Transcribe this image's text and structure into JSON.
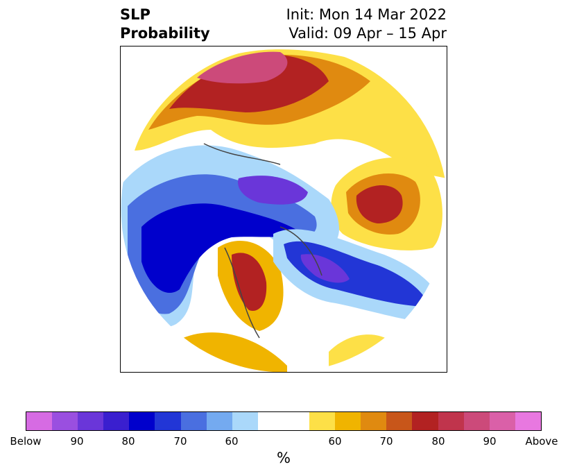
{
  "title": {
    "left_line1": "SLP",
    "left_line2": "Probability",
    "right_line1": "Init: Mon 14 Mar 2022",
    "right_line2": "Valid: 09 Apr – 15 Apr"
  },
  "colorbar": {
    "colors": [
      "#d66be3",
      "#9a4fe0",
      "#6a36d9",
      "#3a1fcf",
      "#0000cc",
      "#2236d6",
      "#4a6fe0",
      "#74aaf0",
      "#aad8fa",
      "#ffffff",
      "#ffffff",
      "#fde047",
      "#f0b400",
      "#e08a10",
      "#c8561a",
      "#b22222",
      "#c0344c",
      "#cc4a7a",
      "#da60a8",
      "#e878e0"
    ],
    "ticks": [
      "Below",
      "90",
      "80",
      "70",
      "60",
      "60",
      "70",
      "80",
      "90",
      "Above"
    ],
    "unit": "%"
  }
}
